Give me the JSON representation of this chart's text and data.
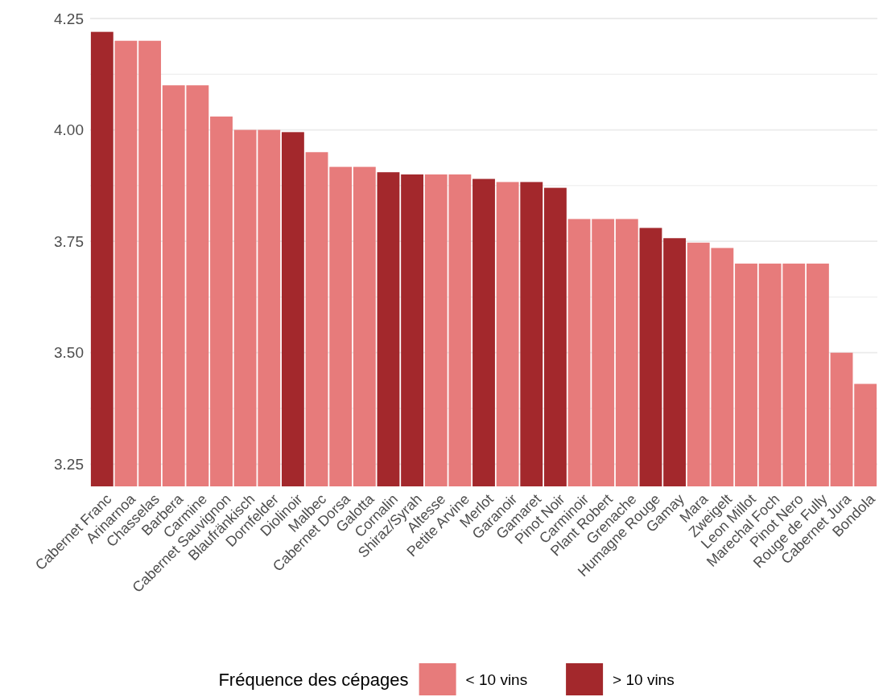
{
  "chart_data": {
    "type": "bar",
    "categories": [
      "Cabernet Franc",
      "Arinarnoa",
      "Chasselas",
      "Barbera",
      "Carmine",
      "Cabernet Sauvignon",
      "Blaufränkisch",
      "Dornfelder",
      "Diolinoir",
      "Malbec",
      "Cabernet Dorsa",
      "Galotta",
      "Cornalin",
      "Shiraz/Syrah",
      "Altesse",
      "Petite Arvine",
      "Merlot",
      "Garanoir",
      "Gamaret",
      "Pinot Noir",
      "Carminoir",
      "Plant Robert",
      "Grenache",
      "Humagne Rouge",
      "Gamay",
      "Mara",
      "Zweigelt",
      "Leon Millot",
      "Marechal Foch",
      "Pinot Nero",
      "Rouge de Fully",
      "Cabernet Jura",
      "Bondola"
    ],
    "series": [
      {
        "name": "< 10 vins",
        "color": "#e77b7b",
        "values": [
          null,
          4.2,
          4.2,
          4.1,
          4.1,
          4.03,
          4.0,
          4.0,
          null,
          3.95,
          3.917,
          3.917,
          null,
          null,
          3.9,
          3.9,
          null,
          3.883,
          null,
          null,
          3.8,
          3.8,
          3.8,
          null,
          null,
          3.747,
          3.735,
          3.7,
          3.7,
          3.7,
          3.7,
          3.5,
          3.43
        ]
      },
      {
        "name": "> 10 vins",
        "color": "#a3282c",
        "values": [
          4.22,
          null,
          null,
          null,
          null,
          null,
          null,
          null,
          3.995,
          null,
          null,
          null,
          3.905,
          3.9,
          null,
          null,
          3.89,
          null,
          3.883,
          3.87,
          null,
          null,
          null,
          3.78,
          3.757,
          null,
          null,
          null,
          null,
          null,
          null,
          null,
          null
        ]
      }
    ],
    "legend_title": "Fréquence des cépages",
    "legend": "bottom",
    "ylim": [
      3.2,
      4.25
    ],
    "yticks": [
      {
        "value": 3.25,
        "label": "3.25"
      },
      {
        "value": 3.375,
        "label": null
      },
      {
        "value": 3.5,
        "label": "3.50"
      },
      {
        "value": 3.625,
        "label": null
      },
      {
        "value": 3.75,
        "label": "3.75"
      },
      {
        "value": 3.875,
        "label": null
      },
      {
        "value": 4.0,
        "label": "4.00"
      },
      {
        "value": 4.125,
        "label": null
      },
      {
        "value": 4.25,
        "label": "4.25"
      }
    ],
    "grid": "y"
  }
}
